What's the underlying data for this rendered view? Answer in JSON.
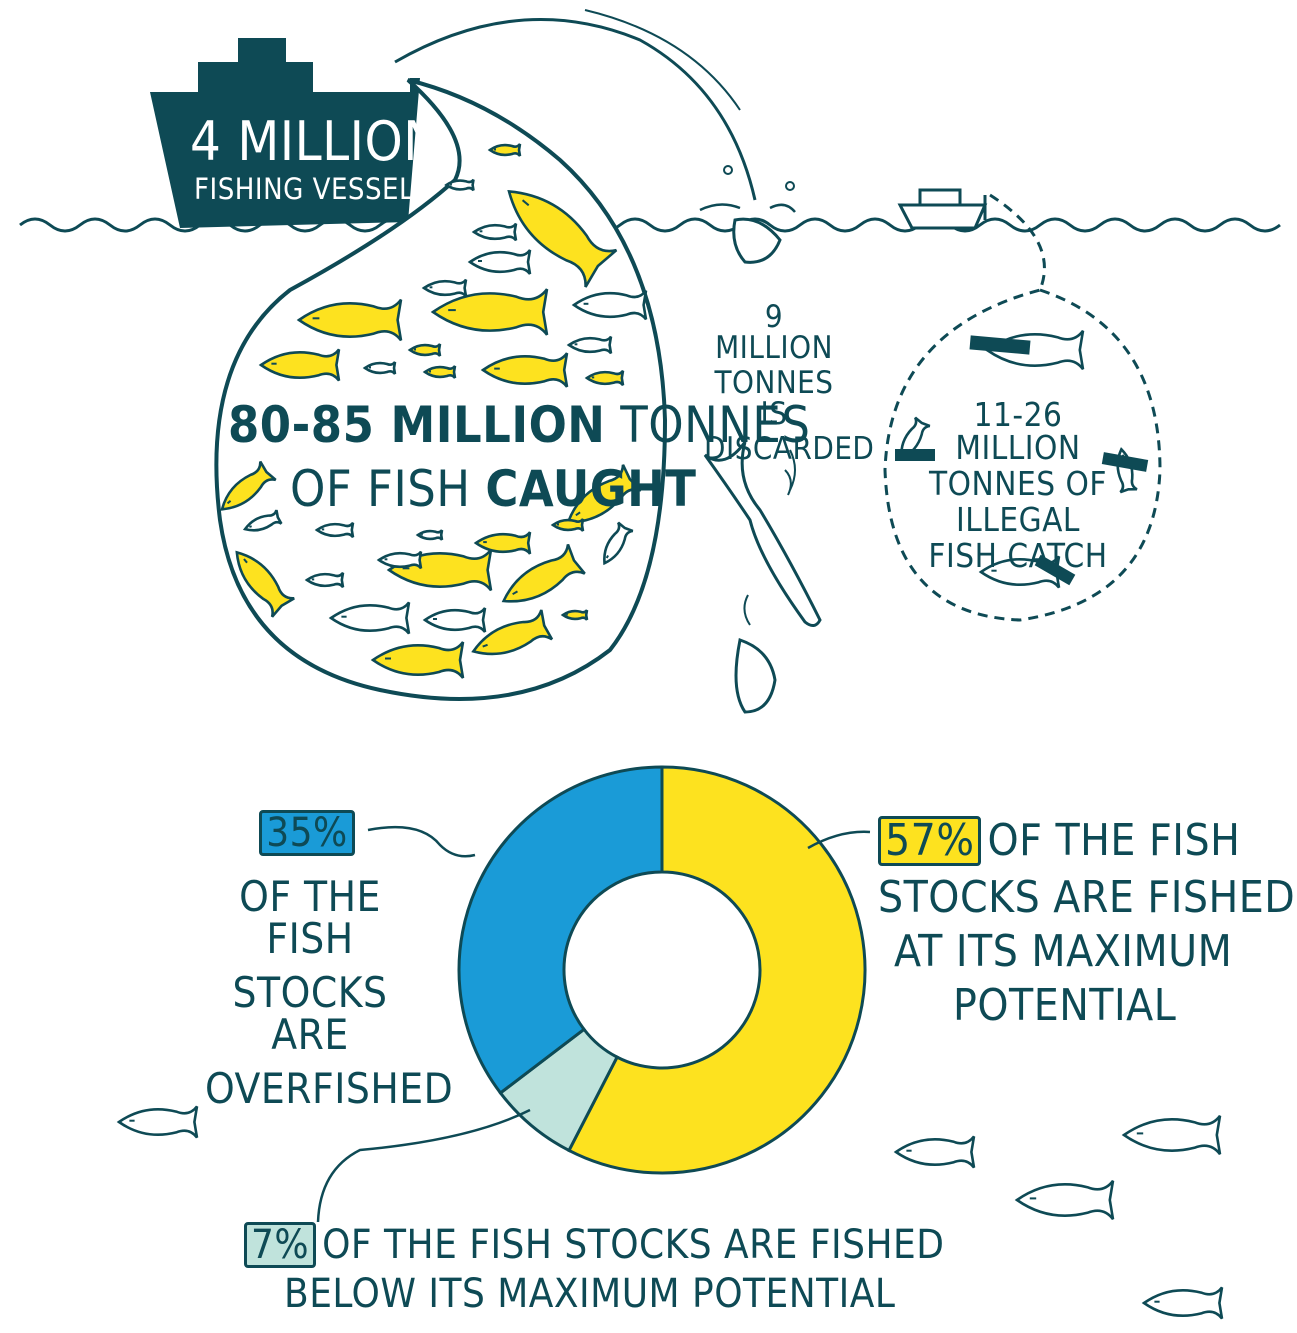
{
  "colors": {
    "ink": "#0e4a55",
    "yellow": "#fde21f",
    "blue": "#1a9bd7",
    "pale": "#c0e3dc",
    "white": "#ffffff"
  },
  "vessel": {
    "number": "4 MILLION",
    "label": "FISHING VESSELS"
  },
  "caught": {
    "line1a": "80-85 MILLION",
    "line1b": "TONNES",
    "line2a": "OF FISH",
    "line2b": "CAUGHT"
  },
  "discarded": {
    "line1": "9 MILLION",
    "line2": "TONNES IS",
    "line3": "DISCARDED"
  },
  "illegal": {
    "line1": "11-26 MILLION",
    "line2": "TONNES OF",
    "line3": "ILLEGAL",
    "line4": "FISH CATCH"
  },
  "stocks": {
    "overfished": {
      "pct": "35%",
      "l1": "OF THE FISH",
      "l2": "STOCKS ARE",
      "l3": "OVERFISHED"
    },
    "maximum": {
      "pct": "57%",
      "l1": "OF THE FISH",
      "l2": "STOCKS ARE FISHED",
      "l3": "AT ITS MAXIMUM",
      "l4": "POTENTIAL"
    },
    "below": {
      "pct": "7%",
      "l1": "OF THE FISH STOCKS ARE FISHED",
      "l2": "BELOW ITS MAXIMUM POTENTIAL"
    }
  },
  "chart_data": {
    "type": "pie",
    "categories": [
      "Fished at its maximum potential",
      "Fished below its maximum potential",
      "Overfished"
    ],
    "values": [
      57,
      7,
      35
    ],
    "colors": [
      "#fde21f",
      "#c0e3dc",
      "#1a9bd7"
    ]
  }
}
